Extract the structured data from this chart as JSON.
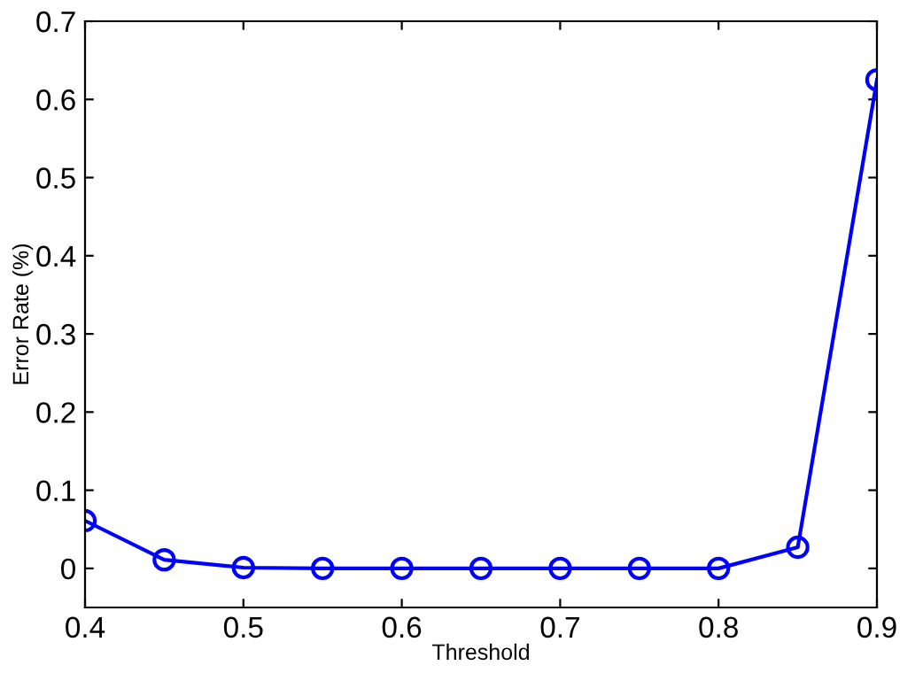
{
  "chart_data": {
    "type": "line",
    "xlabel": "Threshold",
    "ylabel": "Error Rate (%)",
    "x": [
      0.4,
      0.45,
      0.5,
      0.55,
      0.6,
      0.65,
      0.7,
      0.75,
      0.8,
      0.85,
      0.9
    ],
    "series": [
      {
        "color": "#0000ff",
        "values": [
          0.061,
          0.011,
          0.001,
          0,
          0,
          0,
          0,
          0,
          0,
          0.027,
          0.625
        ]
      }
    ],
    "xlim": [
      0.4,
      0.9
    ],
    "xticks": [
      0.4,
      0.5,
      0.6,
      0.7,
      0.8,
      0.9
    ],
    "ylim": [
      -0.05,
      0.7
    ],
    "yticks": [
      0,
      0.1,
      0.2,
      0.3,
      0.4,
      0.5,
      0.6,
      0.7
    ],
    "marker": "circle",
    "line_style": "solid"
  }
}
